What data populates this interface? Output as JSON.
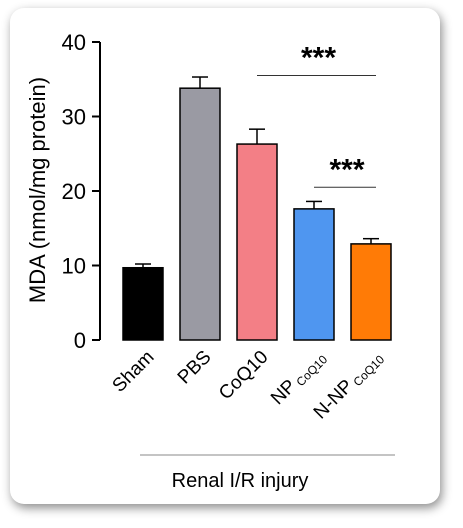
{
  "chart_data": {
    "type": "bar",
    "ylabel": "MDA (nmol/mg protein)",
    "ylim": [
      0,
      40
    ],
    "yticks": [
      0,
      10,
      20,
      30,
      40
    ],
    "categories": [
      {
        "main": "Sham",
        "sub": ""
      },
      {
        "main": "PBS",
        "sub": ""
      },
      {
        "main": "CoQ10",
        "sub": ""
      },
      {
        "main": "NP",
        "sub": "CoQ10"
      },
      {
        "main": "N-NP",
        "sub": "CoQ10"
      }
    ],
    "values": [
      9.7,
      33.8,
      26.3,
      17.6,
      12.9
    ],
    "errors": [
      0.5,
      1.5,
      2.0,
      1.0,
      0.7
    ],
    "colors": [
      "#000000",
      "#9a9aa3",
      "#f37f86",
      "#4f96f0",
      "#ff7b06"
    ],
    "group_label": "Renal I/R injury",
    "significance": [
      {
        "label": "***",
        "from": 2,
        "to": 4
      },
      {
        "label": "***",
        "from": 3,
        "to": 4
      }
    ]
  }
}
